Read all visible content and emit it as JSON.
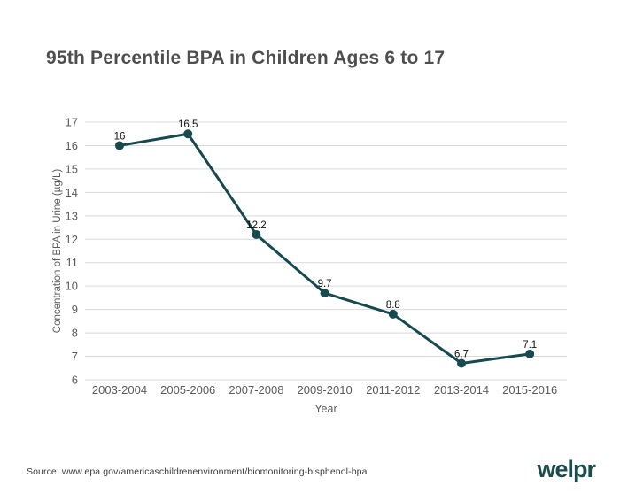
{
  "chart_data": {
    "type": "line",
    "title": "95th Percentile BPA in Children Ages 6 to 17",
    "categories": [
      "2003-2004",
      "2005-2006",
      "2007-2008",
      "2009-2010",
      "2011-2012",
      "2013-2014",
      "2015-2016"
    ],
    "values": [
      16,
      16.5,
      12.2,
      9.7,
      8.8,
      6.7,
      7.1
    ],
    "point_labels": [
      "16",
      "16.5",
      "12.2",
      "9.7",
      "8.8",
      "6.7",
      "7.1"
    ],
    "xlabel": "Year",
    "ylabel": "Concentration of BPA in Urine (µg/L)",
    "ylim": [
      6,
      17
    ],
    "ytick_step": 1,
    "grid": true,
    "legend": "none",
    "colors": {
      "line": "#164a4f",
      "point": "#164a4f",
      "gridline": "#d9d9d9",
      "axis_text": "#5b5b5b",
      "point_label_text": "#111111"
    }
  },
  "footer": {
    "source": "Source: www.epa.gov/americaschildrenenvironment/biomonitoring-bisphenol-bpa",
    "logo": "welpr"
  }
}
